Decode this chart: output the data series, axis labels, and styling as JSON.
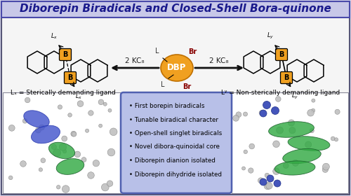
{
  "title": "Diborepin Biradicals and Closed-Shell Bora-quinone",
  "title_color": "#1a1a8c",
  "title_bg": "#c8c8e8",
  "title_border": "#4a4aaa",
  "bg_color": "#dcdcf0",
  "main_bg": "#f5f5f5",
  "bullet_points": [
    "• First borepin biradicals",
    "• Tunable biradical character",
    "• Open-shell singlet biradicals",
    "• Novel dibora-quinoidal core",
    "• Diborepin dianion isolated",
    "• Diborepin dihydride isolated"
  ],
  "bullet_box_color": "#b8c0e8",
  "bullet_box_edge": "#5060b0",
  "dbp_color": "#f0a020",
  "dbp_text": "DBP",
  "arrow_color": "#111111",
  "kc8_text": "2 KC₈",
  "kc8_color": "#222222",
  "br_color": "#880000",
  "lx_label": "Lₓ = Sterically demanding ligand",
  "ly_label": "Lʸ = Non-sterically demanding ligand",
  "boron_color": "#f0a020",
  "blue_lobe": "#4455cc",
  "green_lobe": "#33aa44",
  "gray_atom": "#aaaaaa"
}
